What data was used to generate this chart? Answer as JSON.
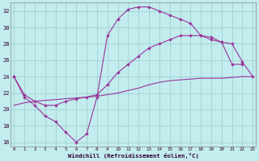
{
  "title": "Windchill (Refroidissement éolien,°C)",
  "bg_color": "#c2ecee",
  "line_color": "#993399",
  "grid_color": "#99cccc",
  "x_min": 0,
  "x_max": 23,
  "y_min": 15.5,
  "y_max": 33.0,
  "y_ticks": [
    16,
    18,
    20,
    22,
    24,
    26,
    28,
    30,
    32
  ],
  "series1_x": [
    0,
    1,
    2,
    3,
    4,
    5,
    6,
    7,
    8,
    9,
    10,
    11,
    12,
    13,
    14,
    15,
    16,
    17,
    18,
    19,
    20,
    21,
    22
  ],
  "series1_y": [
    24.0,
    21.5,
    20.5,
    19.2,
    18.5,
    17.2,
    16.0,
    17.0,
    21.5,
    29.0,
    31.0,
    32.2,
    32.5,
    32.5,
    32.0,
    31.5,
    31.0,
    30.5,
    29.0,
    28.5,
    28.2,
    25.5,
    25.5
  ],
  "series2_x": [
    0,
    1,
    2,
    3,
    4,
    5,
    6,
    7,
    8,
    9,
    10,
    11,
    12,
    13,
    14,
    15,
    16,
    17,
    18,
    19,
    20,
    21,
    22,
    23
  ],
  "series2_y": [
    24.0,
    21.8,
    21.0,
    20.5,
    20.5,
    21.0,
    21.3,
    21.5,
    21.8,
    23.0,
    24.5,
    25.5,
    26.5,
    27.5,
    28.0,
    28.5,
    29.0,
    29.0,
    29.0,
    28.8,
    28.2,
    28.0,
    25.8,
    24.0
  ],
  "series3_x": [
    0,
    1,
    2,
    3,
    4,
    5,
    6,
    7,
    8,
    9,
    10,
    11,
    12,
    13,
    14,
    15,
    16,
    17,
    18,
    19,
    20,
    21,
    22,
    23
  ],
  "series3_y": [
    20.5,
    20.8,
    21.0,
    21.1,
    21.2,
    21.3,
    21.4,
    21.5,
    21.6,
    21.8,
    22.0,
    22.3,
    22.6,
    23.0,
    23.3,
    23.5,
    23.6,
    23.7,
    23.8,
    23.8,
    23.8,
    23.9,
    24.0,
    24.0
  ]
}
